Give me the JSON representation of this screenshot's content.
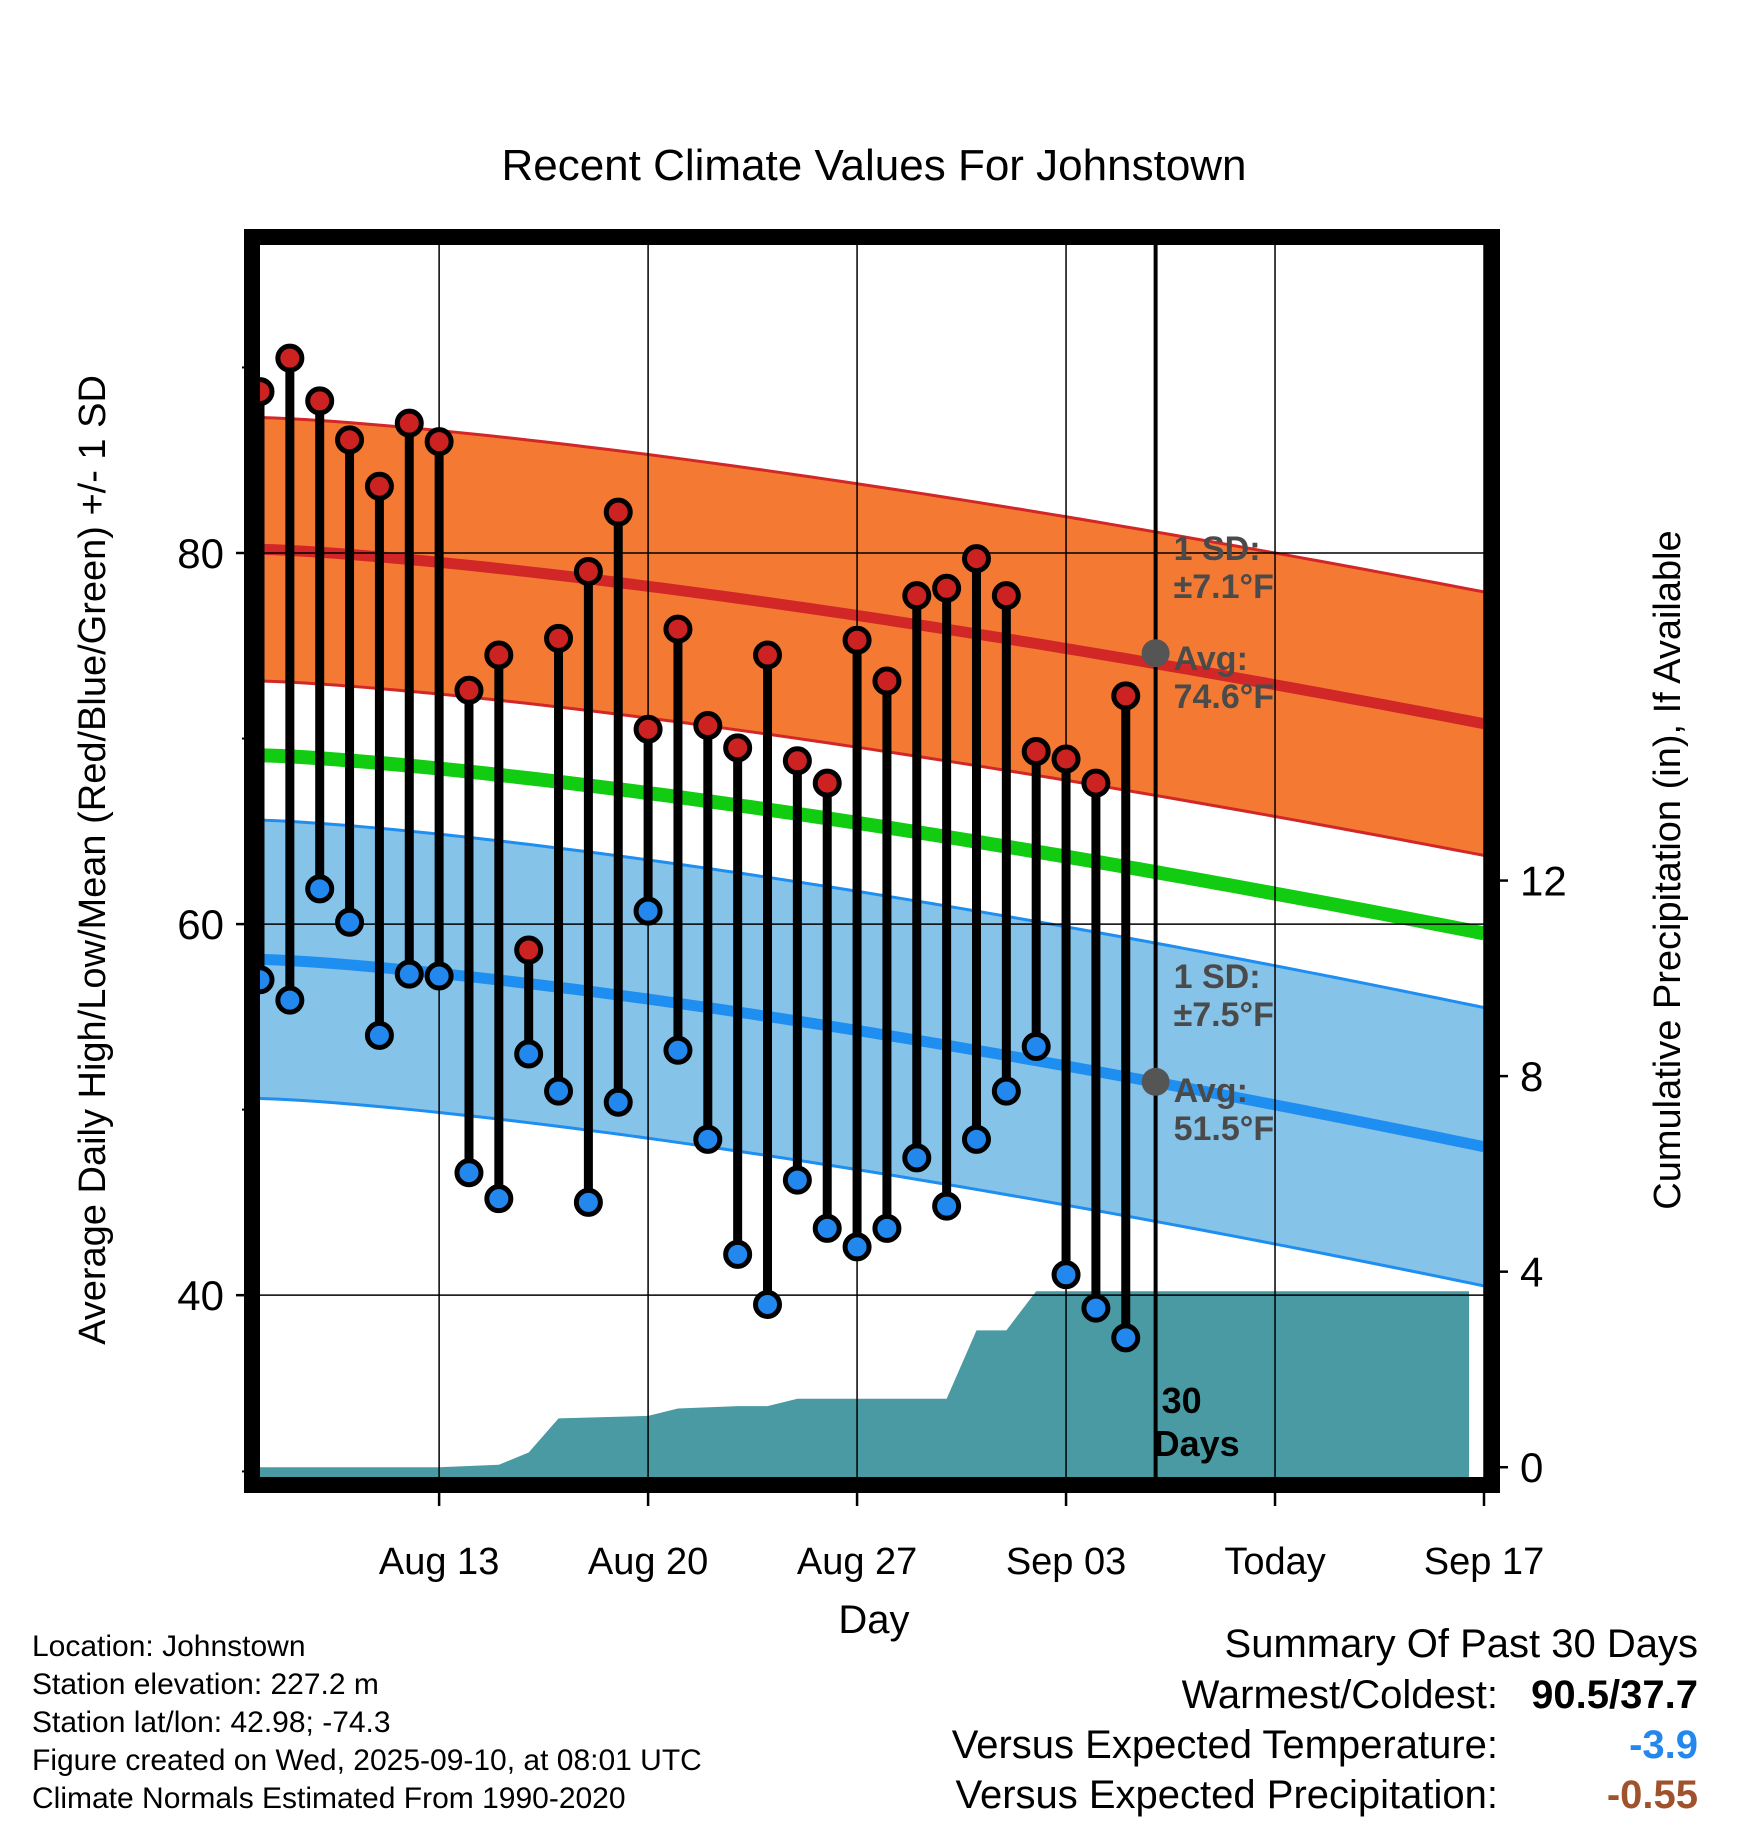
{
  "chart_data": {
    "type": "line",
    "title": "Recent Climate Values For Johnstown",
    "xlabel": "Day",
    "ylabel": "Average Daily High/Low/Mean (Red/Blue/Green) +/- 1 SD",
    "ylabel_right": "Cumulative Precipitation (in), If Available",
    "x_ticks": [
      "Aug 13",
      "Aug 20",
      "Aug 27",
      "Sep 03",
      "Today",
      "Sep 17"
    ],
    "y_ticks_left": [
      "40",
      "60",
      "80"
    ],
    "y_ticks_right": [
      "0",
      "4",
      "8",
      "12"
    ],
    "xlim_days": [
      0,
      41
    ],
    "ylim_temp": [
      30.2,
      96.6
    ],
    "ylim_precip": [
      -0.2,
      25.0
    ],
    "x_days": [
      0,
      1,
      2,
      3,
      4,
      5,
      6,
      7,
      8,
      9,
      10,
      11,
      12,
      13,
      14,
      15,
      16,
      17,
      18,
      19,
      20,
      21,
      22,
      23,
      24,
      25,
      26,
      27,
      28,
      29
    ],
    "highs": [
      88.7,
      90.5,
      88.2,
      86.1,
      83.6,
      87.0,
      86.0,
      72.6,
      74.5,
      58.6,
      75.4,
      79.0,
      82.2,
      70.5,
      75.9,
      70.7,
      69.5,
      74.5,
      68.8,
      67.6,
      75.3,
      73.1,
      77.7,
      78.1,
      79.7,
      77.7,
      69.3,
      68.9,
      67.6,
      72.3
    ],
    "lows": [
      57.0,
      55.9,
      61.9,
      60.1,
      54.0,
      57.3,
      57.2,
      46.6,
      45.2,
      53.0,
      51.0,
      45.0,
      50.4,
      60.7,
      53.2,
      48.4,
      42.2,
      39.5,
      46.2,
      43.6,
      42.6,
      43.6,
      47.4,
      44.8,
      48.4,
      51.0,
      53.4,
      41.1,
      39.3,
      37.7
    ],
    "normal_high_range": [
      80.2,
      70.8
    ],
    "normal_low_range": [
      58.1,
      48.0
    ],
    "normal_mean_range": [
      69.1,
      59.5
    ],
    "sd_high": 7.1,
    "sd_low": 7.5,
    "today_day": 30,
    "precip_cumulative": [
      [
        0,
        0
      ],
      [
        6,
        0
      ],
      [
        8,
        0.05
      ],
      [
        9,
        0.3
      ],
      [
        10,
        1.0
      ],
      [
        13,
        1.05
      ],
      [
        14,
        1.2
      ],
      [
        16,
        1.25
      ],
      [
        17,
        1.25
      ],
      [
        18,
        1.4
      ],
      [
        23,
        1.4
      ],
      [
        24,
        2.8
      ],
      [
        25,
        2.8
      ],
      [
        26,
        3.6
      ],
      [
        40.5,
        3.6
      ]
    ],
    "annotations": {
      "high_sd": [
        "1 SD:",
        "±7.1°F"
      ],
      "high_avg": [
        "Avg:",
        "74.6°F"
      ],
      "low_sd": [
        "1 SD:",
        "±7.5°F"
      ],
      "low_avg": [
        "Avg:",
        "51.5°F"
      ],
      "days": [
        "30",
        "Days"
      ]
    },
    "colors": {
      "high_band": "#f47a33",
      "high_line": "#d22727",
      "low_band": "#86c3e8",
      "low_line": "#1e8ff0",
      "mean_line": "#11cc11",
      "precip": "#4a9aa3",
      "high_marker": "#cc2222",
      "low_marker": "#2288ee"
    }
  },
  "info": {
    "location": "Location: Johnstown",
    "elevation": "Station elevation: 227.2 m",
    "latlon": "Station lat/lon: 42.98; -74.3",
    "created": "Figure created on Wed, 2025-09-10, at 08:01 UTC",
    "normals": "Climate Normals Estimated From 1990-2020"
  },
  "summary": {
    "title": "Summary Of Past 30 Days",
    "warm_cold_label": "Warmest/Coldest:",
    "warm_cold_value": "90.5/37.7",
    "temp_label": "Versus Expected Temperature:",
    "temp_value": "-3.9",
    "temp_color": "#2288ee",
    "precip_label": "Versus Expected Precipitation:",
    "precip_value": "-0.55",
    "precip_color": "#a0522d"
  }
}
